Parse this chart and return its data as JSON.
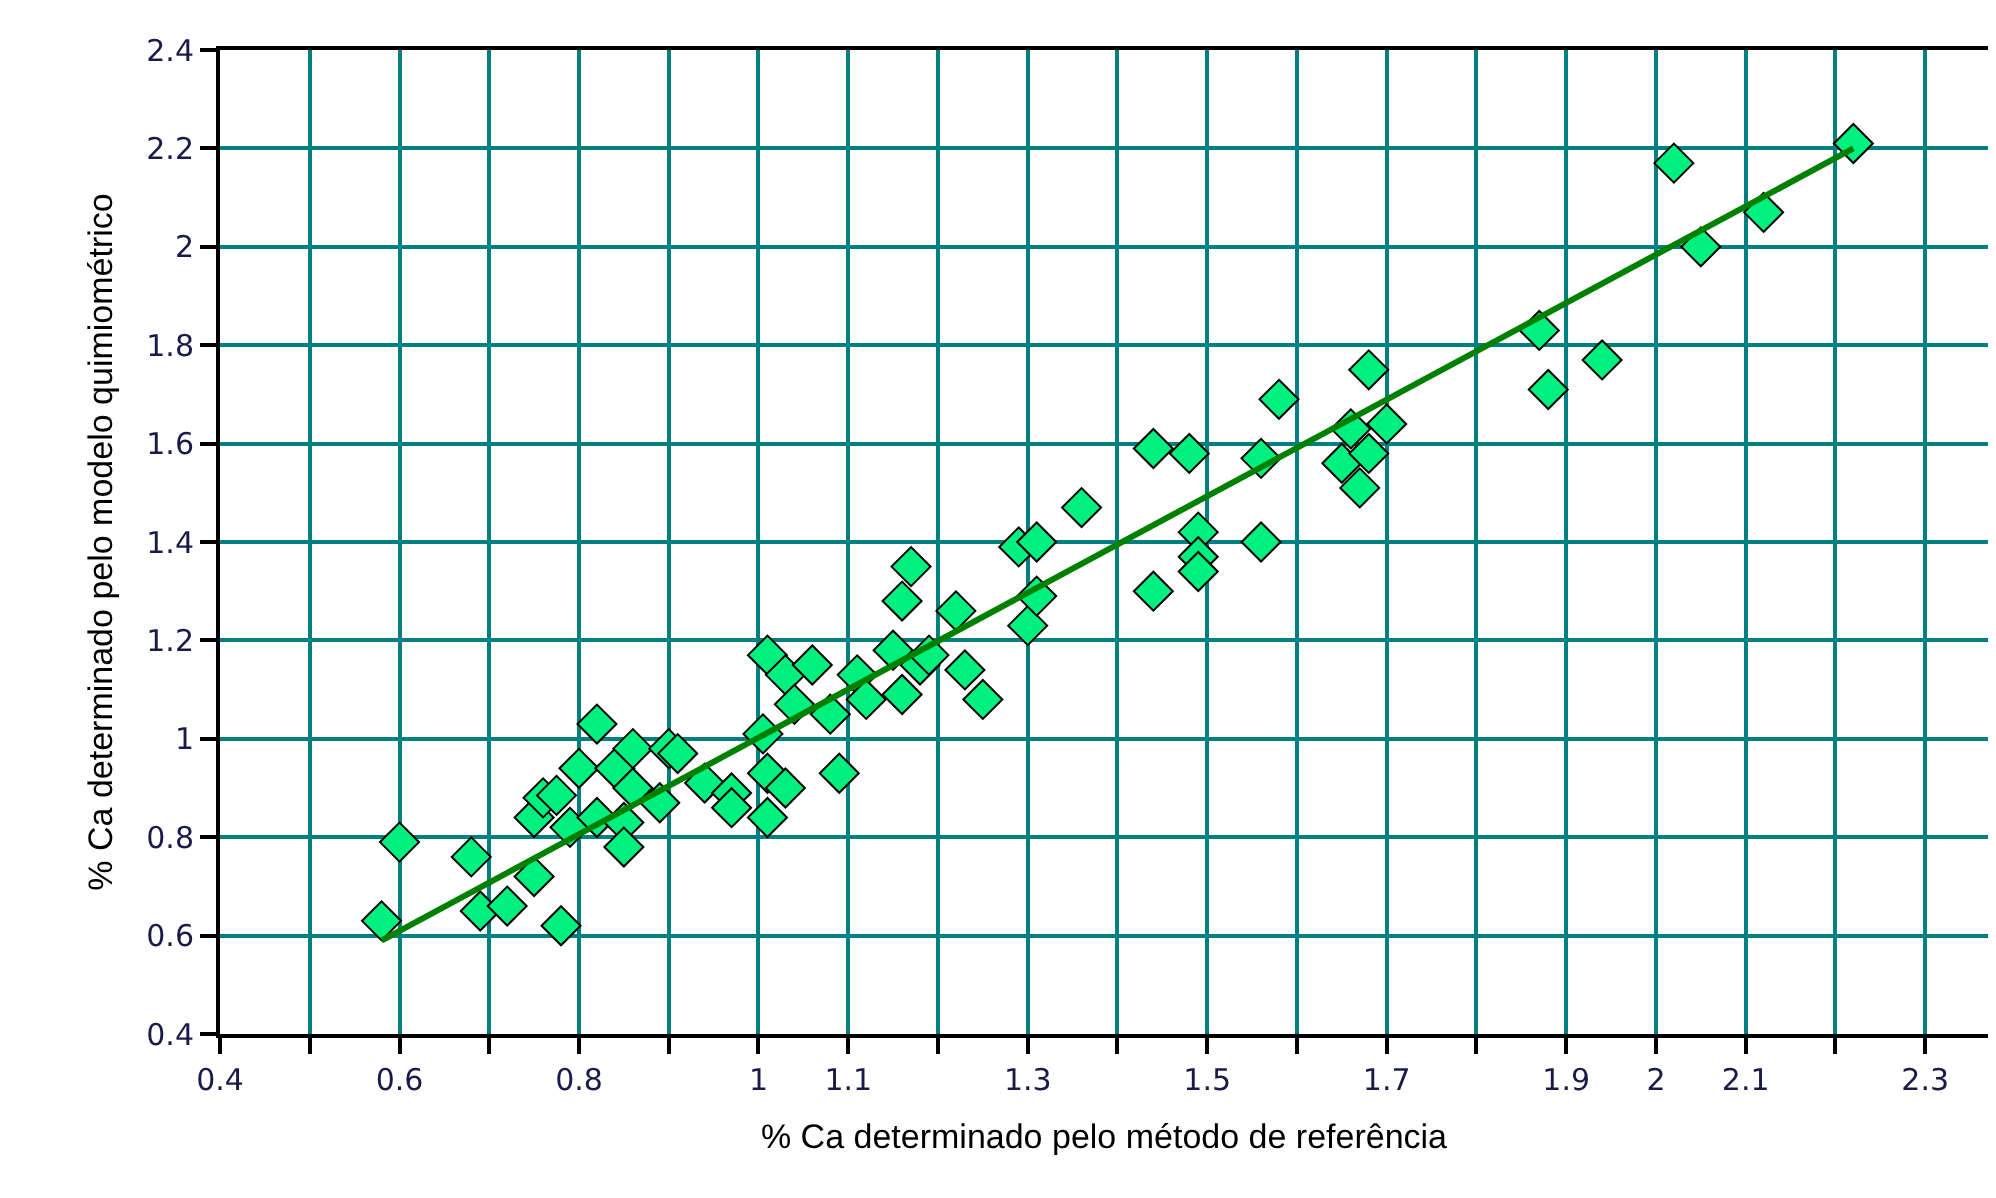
{
  "chart_data": {
    "type": "scatter",
    "xlabel": "% Ca determinado pelo método de referência",
    "ylabel": "% Ca determinado pelo modelo quimiométrico",
    "xlim": [
      0.4,
      2.37
    ],
    "ylim": [
      0.4,
      2.4
    ],
    "xticks": [
      0.4,
      {
        "value": 0.5,
        "label": null
      },
      0.6,
      {
        "value": 0.7,
        "label": null
      },
      0.8,
      {
        "value": 0.9,
        "label": null
      },
      1,
      1.1,
      {
        "value": 1.2,
        "label": null
      },
      1.3,
      {
        "value": 1.4,
        "label": null
      },
      1.5,
      {
        "value": 1.6,
        "label": null
      },
      1.7,
      {
        "value": 1.8,
        "label": null
      },
      1.9,
      2,
      2.1,
      {
        "value": 2.2,
        "label": null
      },
      2.3
    ],
    "yticks": [
      0.4,
      0.6,
      0.8,
      1,
      1.2,
      1.4,
      1.6,
      1.8,
      2,
      2.2,
      2.4
    ],
    "grid": true,
    "marker": "diamond",
    "series": [
      {
        "color": "#00f080",
        "x": [
          0.58,
          0.6,
          0.68,
          0.69,
          0.72,
          0.75,
          0.78,
          0.75,
          0.76,
          0.775,
          0.79,
          0.8,
          0.82,
          0.82,
          0.84,
          0.85,
          0.85,
          0.86,
          0.86,
          0.89,
          0.9,
          0.91,
          0.94,
          0.97,
          0.97,
          1.005,
          1.01,
          1.01,
          1.03,
          1.01,
          1.03,
          1.06,
          1.04,
          1.08,
          1.09,
          1.11,
          1.12,
          1.15,
          1.16,
          1.18,
          1.19,
          1.16,
          1.17,
          1.22,
          1.23,
          1.25,
          1.3,
          1.31,
          1.29,
          1.31,
          1.36,
          1.44,
          1.48,
          1.44,
          1.49,
          1.49,
          1.49,
          1.56,
          1.56,
          1.58,
          1.68,
          1.66,
          1.7,
          1.65,
          1.68,
          1.67,
          1.87,
          1.88,
          1.94,
          2.02,
          2.05,
          2.12,
          2.22
        ],
        "values": [
          0.63,
          0.79,
          0.76,
          0.65,
          0.66,
          0.72,
          0.62,
          0.84,
          0.88,
          0.885,
          0.82,
          0.94,
          1.03,
          0.84,
          0.94,
          0.83,
          0.78,
          0.98,
          0.9,
          0.87,
          0.98,
          0.97,
          0.91,
          0.89,
          0.86,
          1.01,
          0.93,
          0.84,
          0.9,
          1.17,
          1.13,
          1.15,
          1.07,
          1.05,
          0.93,
          1.13,
          1.08,
          1.18,
          1.09,
          1.15,
          1.17,
          1.28,
          1.35,
          1.26,
          1.14,
          1.08,
          1.23,
          1.29,
          1.39,
          1.4,
          1.47,
          1.59,
          1.58,
          1.3,
          1.42,
          1.37,
          1.34,
          1.4,
          1.57,
          1.69,
          1.75,
          1.63,
          1.64,
          1.56,
          1.58,
          1.51,
          1.83,
          1.71,
          1.77,
          2.17,
          2.0,
          2.07,
          2.21
        ]
      },
      {
        "type": "line",
        "marker": "none",
        "color": "#008000",
        "x": [
          0.58,
          2.22
        ],
        "values": [
          0.59,
          2.2
        ]
      }
    ]
  }
}
